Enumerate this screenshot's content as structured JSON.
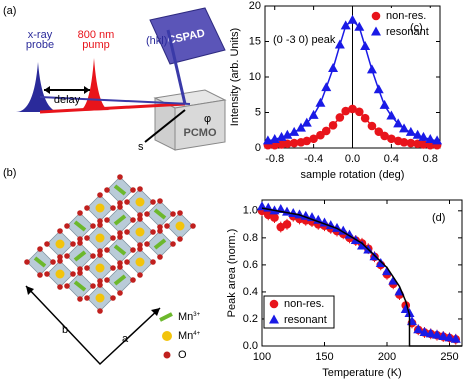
{
  "panel_a": {
    "label": "(a)",
    "x_ray_probe": [
      "x-ray",
      "probe"
    ],
    "pump": [
      "800 nm",
      "pump"
    ],
    "delay": "delay",
    "detector": "CSPAD",
    "hkl": "(hkl)",
    "phi": "φ",
    "s": "s",
    "sample": "PCMO"
  },
  "panel_b": {
    "label": "(b)",
    "legend": [
      {
        "label": "Mn",
        "charge": "3+"
      },
      {
        "label": "Mn",
        "charge": "4+"
      },
      {
        "label": "O"
      }
    ],
    "axis_a": "a",
    "axis_b": "b"
  },
  "chart_data": [
    {
      "type": "scatter",
      "label": "(c)",
      "annotation": "(0 -3 0) peak",
      "x_label": "sample rotation (deg)",
      "y_label": "Intensity (arb. Units)",
      "xlim": [
        -0.9,
        0.9
      ],
      "xticks": [
        -0.8,
        -0.4,
        {
          "value": 0,
          "label": "0.0"
        },
        0.4,
        0.8
      ],
      "ylim": [
        0,
        20
      ],
      "yticks": [
        0,
        5,
        10,
        15,
        20
      ],
      "vline": 0,
      "legend": "upper right",
      "series": [
        {
          "name": "non-res.",
          "color": "#e8141b",
          "marker": "circle",
          "line": true,
          "x": [
            -0.87,
            -0.8,
            -0.73,
            -0.67,
            -0.6,
            -0.53,
            -0.47,
            -0.4,
            -0.33,
            -0.27,
            -0.2,
            -0.13,
            -0.07,
            0,
            0.07,
            0.13,
            0.2,
            0.27,
            0.33,
            0.4,
            0.47,
            0.53,
            0.6,
            0.67,
            0.73,
            0.8,
            0.87
          ],
          "values": [
            0.4,
            0.4,
            0.5,
            0.6,
            0.7,
            0.8,
            1.0,
            1.3,
            1.8,
            2.4,
            3.2,
            4.3,
            5.2,
            5.5,
            5.1,
            4.2,
            3.1,
            2.3,
            1.7,
            1.3,
            1.0,
            0.8,
            0.7,
            0.6,
            0.5,
            0.4,
            0.4
          ]
        },
        {
          "name": "resonant",
          "color": "#1a1ae6",
          "marker": "triangle",
          "line": true,
          "x": [
            -0.87,
            -0.8,
            -0.73,
            -0.67,
            -0.6,
            -0.53,
            -0.47,
            -0.4,
            -0.33,
            -0.27,
            -0.2,
            -0.13,
            -0.07,
            0,
            0.07,
            0.13,
            0.2,
            0.27,
            0.33,
            0.4,
            0.47,
            0.53,
            0.6,
            0.67,
            0.73,
            0.8,
            0.87
          ],
          "values": [
            1.0,
            1.2,
            1.5,
            1.8,
            2.2,
            2.8,
            3.5,
            4.6,
            6.3,
            8.5,
            11.2,
            14.5,
            17.2,
            18,
            17.0,
            14.3,
            11.0,
            8.2,
            6.0,
            4.5,
            3.4,
            2.7,
            2.2,
            1.8,
            1.5,
            1.2,
            1.0
          ]
        }
      ]
    },
    {
      "type": "scatter",
      "label": "(d)",
      "x_label": "Temperature (K)",
      "y_label": "Peak area (norm.)",
      "xlim": [
        100,
        260
      ],
      "xticks": [
        100,
        150,
        200,
        250
      ],
      "ylim": [
        0,
        1.08
      ],
      "yticks": [
        {
          "value": 0,
          "label": "0.0"
        },
        0.2,
        0.4,
        0.6,
        0.8,
        {
          "value": 1,
          "label": "1.0"
        }
      ],
      "legend": "lower left",
      "series": [
        {
          "name": "non-res.",
          "color": "#e8141b",
          "marker": "circle",
          "x": [
            100,
            105,
            110,
            115,
            120,
            125,
            130,
            135,
            140,
            145,
            150,
            155,
            160,
            165,
            170,
            175,
            180,
            185,
            190,
            195,
            200,
            205,
            210,
            215,
            220,
            225,
            230,
            235,
            240,
            245,
            250,
            255
          ],
          "values": [
            1.0,
            0.97,
            0.95,
            0.88,
            0.9,
            0.96,
            0.94,
            0.93,
            0.92,
            0.9,
            0.89,
            0.87,
            0.85,
            0.83,
            0.8,
            0.78,
            0.76,
            0.72,
            0.66,
            0.6,
            0.53,
            0.46,
            0.38,
            0.3,
            0.17,
            0.12,
            0.1,
            0.09,
            0.08,
            0.07,
            0.06,
            0.05
          ],
          "errors": [
            0.04,
            0.04,
            0.04,
            0.04,
            0.04,
            0.04,
            0.04,
            0.04,
            0.04,
            0.04,
            0.04,
            0.04,
            0.04,
            0.04,
            0.04,
            0.04,
            0.04,
            0.04,
            0.04,
            0.04,
            0.04,
            0.04,
            0.04,
            0.04,
            0.04,
            0.04,
            0.04,
            0.04,
            0.04,
            0.04,
            0.04,
            0.04
          ]
        },
        {
          "name": "resonant",
          "color": "#1a1ae6",
          "marker": "triangle",
          "x": [
            100,
            105,
            110,
            115,
            120,
            125,
            130,
            135,
            140,
            145,
            150,
            155,
            160,
            165,
            170,
            175,
            180,
            185,
            190,
            195,
            200,
            205,
            210,
            215,
            218,
            220,
            225,
            230,
            235,
            240,
            245,
            250,
            255
          ],
          "values": [
            1.03,
            1.02,
            1.0,
            1.01,
            0.99,
            0.98,
            0.97,
            0.96,
            0.95,
            0.93,
            0.91,
            0.89,
            0.87,
            0.85,
            0.82,
            0.78,
            0.74,
            0.71,
            0.66,
            0.61,
            0.55,
            0.48,
            0.4,
            0.27,
            0.24,
            0.18,
            0.12,
            0.1,
            0.09,
            0.08,
            0.07,
            0.06,
            0.05
          ]
        },
        {
          "color": "#000000",
          "line": true,
          "x": [
            100,
            130,
            160,
            180,
            200,
            210,
            215,
            218,
            218,
            260
          ],
          "values": [
            1.02,
            0.97,
            0.87,
            0.76,
            0.58,
            0.44,
            0.33,
            0.23,
            0,
            0
          ]
        }
      ]
    }
  ]
}
